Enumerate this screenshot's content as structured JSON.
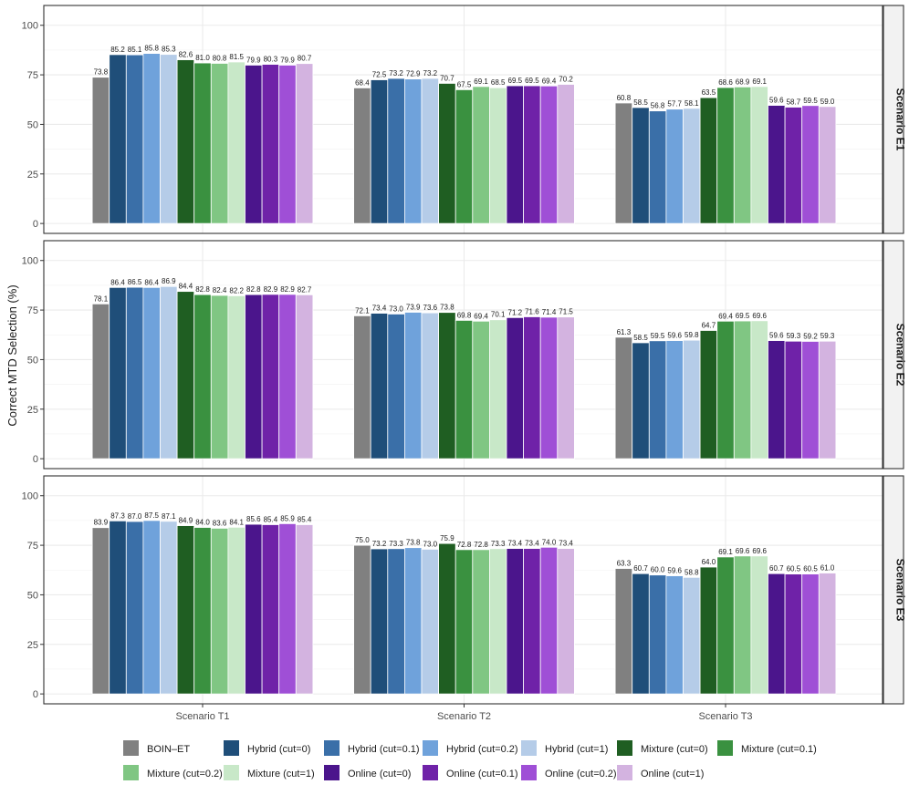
{
  "chart_data": {
    "type": "bar",
    "ylabel": "Correct MTD Selection (%)",
    "xlabel": "",
    "ylim": [
      -5,
      110
    ],
    "yticks": [
      0,
      25,
      50,
      75,
      100
    ],
    "categories": [
      "Scenario T1",
      "Scenario T2",
      "Scenario T3"
    ],
    "legend_position": "bottom",
    "series": [
      {
        "name": "BOIN–ET",
        "color": "#808080"
      },
      {
        "name": "Hybrid (cut=0)",
        "color": "#1f4e79"
      },
      {
        "name": "Hybrid (cut=0.1)",
        "color": "#3a6fa8"
      },
      {
        "name": "Hybrid (cut=0.2)",
        "color": "#6fa2db"
      },
      {
        "name": "Hybrid (cut=1)",
        "color": "#b5cce8"
      },
      {
        "name": "Mixture (cut=0)",
        "color": "#1f5e22"
      },
      {
        "name": "Mixture (cut=0.1)",
        "color": "#3a9140"
      },
      {
        "name": "Mixture (cut=0.2)",
        "color": "#80c683"
      },
      {
        "name": "Mixture (cut=1)",
        "color": "#c8e8c8"
      },
      {
        "name": "Online (cut=0)",
        "color": "#4b158c"
      },
      {
        "name": "Online (cut=0.1)",
        "color": "#6f22a8"
      },
      {
        "name": "Online (cut=0.2)",
        "color": "#9f4fd6"
      },
      {
        "name": "Online (cut=1)",
        "color": "#d3b3e0"
      }
    ],
    "facets": [
      {
        "label": "Scenario E1",
        "values": [
          [
            73.8,
            85.2,
            85.1,
            85.8,
            85.3,
            82.6,
            81.0,
            80.8,
            81.5,
            79.9,
            80.3,
            79.9,
            80.7
          ],
          [
            68.4,
            72.5,
            73.2,
            72.9,
            73.2,
            70.7,
            67.5,
            69.1,
            68.5,
            69.5,
            69.5,
            69.4,
            70.2
          ],
          [
            60.8,
            58.5,
            56.8,
            57.7,
            58.1,
            63.5,
            68.6,
            68.9,
            69.1,
            59.6,
            58.7,
            59.5,
            59.0
          ]
        ],
        "labels": [
          [
            "73.8",
            "85.2",
            "85.1",
            "85.8",
            "85.3",
            "82.6",
            "81.0",
            "80.8",
            "81.5",
            "79.9",
            "80.3",
            "79.9",
            "80.7"
          ],
          [
            "68.4",
            "72.5",
            "73.2",
            "72.9",
            "73.2",
            "70.7",
            "67.5",
            "69.1",
            "68.5",
            "69.5",
            "69.5",
            "69.4",
            "70.2"
          ],
          [
            "60.8",
            "58.5",
            "56.8",
            "57.7",
            "58.1",
            "63.5",
            "68.6",
            "68.9",
            "69.1",
            "59.6",
            "58.7",
            "59.5",
            "59.0"
          ]
        ]
      },
      {
        "label": "Scenario E2",
        "values": [
          [
            78.1,
            86.4,
            86.5,
            86.4,
            86.9,
            84.4,
            82.8,
            82.4,
            82.2,
            82.8,
            82.9,
            82.9,
            82.7
          ],
          [
            72.1,
            73.4,
            73.0,
            73.9,
            73.6,
            73.8,
            69.8,
            69.4,
            70.1,
            71.2,
            71.6,
            71.4,
            71.5
          ],
          [
            61.3,
            58.5,
            59.5,
            59.6,
            59.8,
            64.7,
            69.4,
            69.5,
            69.6,
            59.6,
            59.3,
            59.2,
            59.3
          ]
        ],
        "labels": [
          [
            "78.1",
            "86.4",
            "86.5",
            "86.4",
            "86.9",
            "84.4",
            "82.8",
            "82.4",
            "82.2",
            "82.8",
            "82.9",
            "82.9",
            "82.7"
          ],
          [
            "72.1",
            "73.4",
            "73.0",
            "73.9",
            "73.6",
            "73.8",
            "69.8",
            "69.4",
            "70.1",
            "71.2",
            "71.6",
            "71.4",
            "71.5"
          ],
          [
            "61.3",
            "58.5",
            "59.5",
            "59.6",
            "59.8",
            "64.7",
            "69.4",
            "69.5",
            "69.6",
            "59.6",
            "59.3",
            "59.2",
            "59.3"
          ]
        ]
      },
      {
        "label": "Scenario E3",
        "values": [
          [
            83.9,
            87.3,
            87.0,
            87.5,
            87.1,
            84.9,
            84.0,
            83.6,
            84.1,
            85.6,
            85.4,
            85.9,
            85.4
          ],
          [
            75.0,
            73.2,
            73.3,
            73.8,
            73.0,
            75.9,
            72.8,
            72.8,
            73.3,
            73.4,
            73.4,
            74.0,
            73.4
          ],
          [
            63.3,
            60.7,
            60.0,
            59.6,
            58.8,
            64.0,
            69.1,
            69.6,
            69.6,
            60.7,
            60.5,
            60.5,
            61.0
          ]
        ],
        "labels": [
          [
            "83.9",
            "87.3",
            "87.0",
            "87.5",
            "87.1",
            "84.9",
            "84.0",
            "83.6",
            "84.1",
            "85.6",
            "85.4",
            "85.9",
            "85.4"
          ],
          [
            "75.0",
            "73.2",
            "73.3",
            "73.8",
            "73.0",
            "75.9",
            "72.8",
            "72.8",
            "73.3",
            "73.4",
            "73.4",
            "74.0",
            "73.4"
          ],
          [
            "63.3",
            "60.7",
            "60.0",
            "59.6",
            "58.8",
            "64.0",
            "69.1",
            "69.6",
            "69.6",
            "60.7",
            "60.5",
            "60.5",
            "61.0"
          ]
        ]
      }
    ]
  }
}
